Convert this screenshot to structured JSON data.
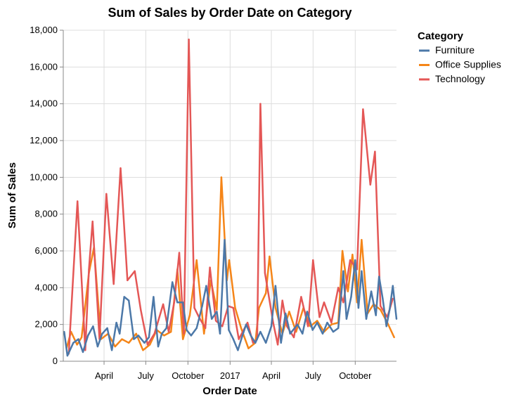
{
  "chart_data": {
    "type": "line",
    "title": "Sum of Sales by Order Date on Category",
    "xlabel": "Order Date",
    "ylabel": "Sum of Sales",
    "ylim": [
      0,
      18000
    ],
    "xlim": [
      "2016-01-03",
      "2017-12-30"
    ],
    "grid": true,
    "legend": {
      "title": "Category",
      "position": "top-right"
    },
    "x_ticks": [
      {
        "date": "2016-04-01",
        "label": "April"
      },
      {
        "date": "2016-07-01",
        "label": "July"
      },
      {
        "date": "2016-10-01",
        "label": "October"
      },
      {
        "date": "2017-01-01",
        "label": "2017"
      },
      {
        "date": "2017-04-01",
        "label": "April"
      },
      {
        "date": "2017-07-01",
        "label": "July"
      },
      {
        "date": "2017-10-01",
        "label": "October"
      }
    ],
    "y_ticks": [
      0,
      2000,
      4000,
      6000,
      8000,
      10000,
      12000,
      14000,
      16000,
      18000
    ],
    "y_tick_labels": [
      "0",
      "2,000",
      "4,000",
      "6,000",
      "8,000",
      "10,000",
      "12,000",
      "14,000",
      "16,000",
      "18,000"
    ],
    "series": [
      {
        "name": "Office Supplies",
        "color": "#f58518",
        "points": [
          [
            "2016-01-10",
            700
          ],
          [
            "2016-01-20",
            1600
          ],
          [
            "2016-02-02",
            900
          ],
          [
            "2016-02-12",
            1300
          ],
          [
            "2016-02-28",
            4800
          ],
          [
            "2016-03-10",
            6200
          ],
          [
            "2016-03-25",
            1200
          ],
          [
            "2016-04-10",
            1500
          ],
          [
            "2016-04-25",
            800
          ],
          [
            "2016-05-10",
            1200
          ],
          [
            "2016-05-25",
            1000
          ],
          [
            "2016-06-10",
            1500
          ],
          [
            "2016-06-25",
            600
          ],
          [
            "2016-07-10",
            900
          ],
          [
            "2016-07-25",
            1700
          ],
          [
            "2016-08-10",
            1400
          ],
          [
            "2016-08-25",
            1600
          ],
          [
            "2016-09-08",
            5000
          ],
          [
            "2016-09-20",
            1200
          ],
          [
            "2016-10-05",
            2500
          ],
          [
            "2016-10-20",
            5500
          ],
          [
            "2016-11-05",
            1500
          ],
          [
            "2016-11-20",
            4400
          ],
          [
            "2016-12-03",
            2800
          ],
          [
            "2016-12-13",
            10000
          ],
          [
            "2016-12-25",
            4400
          ],
          [
            "2016-12-30",
            5500
          ],
          [
            "2017-01-12",
            2900
          ],
          [
            "2017-01-25",
            1800
          ],
          [
            "2017-02-10",
            700
          ],
          [
            "2017-02-25",
            1000
          ],
          [
            "2017-03-05",
            2900
          ],
          [
            "2017-03-20",
            3700
          ],
          [
            "2017-03-28",
            5700
          ],
          [
            "2017-04-10",
            2900
          ],
          [
            "2017-04-25",
            1500
          ],
          [
            "2017-05-10",
            2700
          ],
          [
            "2017-05-25",
            1600
          ],
          [
            "2017-06-10",
            2900
          ],
          [
            "2017-06-25",
            1900
          ],
          [
            "2017-07-10",
            2200
          ],
          [
            "2017-07-25",
            1600
          ],
          [
            "2017-08-10",
            2000
          ],
          [
            "2017-08-25",
            2100
          ],
          [
            "2017-09-03",
            6000
          ],
          [
            "2017-09-15",
            3800
          ],
          [
            "2017-09-25",
            5800
          ],
          [
            "2017-10-05",
            3200
          ],
          [
            "2017-10-15",
            6600
          ],
          [
            "2017-10-28",
            2600
          ],
          [
            "2017-11-10",
            3100
          ],
          [
            "2017-11-25",
            2800
          ],
          [
            "2017-12-10",
            2100
          ],
          [
            "2017-12-25",
            1300
          ]
        ]
      },
      {
        "name": "Technology",
        "color": "#e45756",
        "points": [
          [
            "2016-01-15",
            400
          ],
          [
            "2016-02-03",
            8700
          ],
          [
            "2016-02-20",
            600
          ],
          [
            "2016-02-28",
            5000
          ],
          [
            "2016-03-07",
            7600
          ],
          [
            "2016-03-22",
            1200
          ],
          [
            "2016-04-06",
            9100
          ],
          [
            "2016-04-22",
            4200
          ],
          [
            "2016-05-07",
            10500
          ],
          [
            "2016-05-22",
            4400
          ],
          [
            "2016-06-07",
            4900
          ],
          [
            "2016-06-20",
            2800
          ],
          [
            "2016-07-05",
            900
          ],
          [
            "2016-07-20",
            1500
          ],
          [
            "2016-08-08",
            3100
          ],
          [
            "2016-08-20",
            1600
          ],
          [
            "2016-09-01",
            3200
          ],
          [
            "2016-09-12",
            5900
          ],
          [
            "2016-09-22",
            1500
          ],
          [
            "2016-10-03",
            17500
          ],
          [
            "2016-10-15",
            2900
          ],
          [
            "2016-10-25",
            2400
          ],
          [
            "2016-11-08",
            1800
          ],
          [
            "2016-11-18",
            5100
          ],
          [
            "2016-12-01",
            2200
          ],
          [
            "2016-12-15",
            1900
          ],
          [
            "2016-12-28",
            3000
          ],
          [
            "2017-01-08",
            2900
          ],
          [
            "2017-01-20",
            1200
          ],
          [
            "2017-02-08",
            2100
          ],
          [
            "2017-02-20",
            1000
          ],
          [
            "2017-03-01",
            1200
          ],
          [
            "2017-03-08",
            14000
          ],
          [
            "2017-03-18",
            4800
          ],
          [
            "2017-04-05",
            2100
          ],
          [
            "2017-04-15",
            900
          ],
          [
            "2017-04-25",
            3300
          ],
          [
            "2017-05-05",
            1900
          ],
          [
            "2017-05-20",
            1300
          ],
          [
            "2017-06-05",
            3500
          ],
          [
            "2017-06-20",
            1900
          ],
          [
            "2017-07-01",
            5500
          ],
          [
            "2017-07-15",
            2400
          ],
          [
            "2017-07-25",
            3200
          ],
          [
            "2017-08-10",
            2100
          ],
          [
            "2017-08-25",
            4000
          ],
          [
            "2017-09-05",
            3200
          ],
          [
            "2017-09-20",
            5500
          ],
          [
            "2017-10-05",
            5000
          ],
          [
            "2017-10-18",
            13700
          ],
          [
            "2017-11-03",
            9600
          ],
          [
            "2017-11-13",
            11400
          ],
          [
            "2017-11-25",
            3000
          ],
          [
            "2017-12-10",
            2400
          ],
          [
            "2017-12-22",
            3400
          ]
        ]
      },
      {
        "name": "Furniture",
        "color": "#4c78a8",
        "points": [
          [
            "2016-01-05",
            1600
          ],
          [
            "2016-01-12",
            300
          ],
          [
            "2016-01-25",
            1000
          ],
          [
            "2016-02-05",
            1200
          ],
          [
            "2016-02-15",
            500
          ],
          [
            "2016-02-26",
            1400
          ],
          [
            "2016-03-08",
            1900
          ],
          [
            "2016-03-18",
            800
          ],
          [
            "2016-03-28",
            1500
          ],
          [
            "2016-04-08",
            1800
          ],
          [
            "2016-04-18",
            600
          ],
          [
            "2016-04-28",
            2100
          ],
          [
            "2016-05-05",
            1500
          ],
          [
            "2016-05-15",
            3500
          ],
          [
            "2016-05-25",
            3300
          ],
          [
            "2016-06-05",
            1200
          ],
          [
            "2016-06-15",
            1400
          ],
          [
            "2016-06-28",
            1000
          ],
          [
            "2016-07-08",
            1300
          ],
          [
            "2016-07-18",
            3500
          ],
          [
            "2016-07-28",
            800
          ],
          [
            "2016-08-05",
            1500
          ],
          [
            "2016-08-15",
            1800
          ],
          [
            "2016-08-28",
            4300
          ],
          [
            "2016-09-08",
            3200
          ],
          [
            "2016-09-20",
            3200
          ],
          [
            "2016-09-28",
            1700
          ],
          [
            "2016-10-08",
            1400
          ],
          [
            "2016-10-20",
            1800
          ],
          [
            "2016-11-01",
            3000
          ],
          [
            "2016-11-10",
            4100
          ],
          [
            "2016-11-22",
            2300
          ],
          [
            "2016-12-03",
            2700
          ],
          [
            "2016-12-10",
            1500
          ],
          [
            "2016-12-20",
            6600
          ],
          [
            "2016-12-29",
            1700
          ],
          [
            "2017-01-08",
            1200
          ],
          [
            "2017-01-18",
            600
          ],
          [
            "2017-01-28",
            1400
          ],
          [
            "2017-02-05",
            2000
          ],
          [
            "2017-02-15",
            1400
          ],
          [
            "2017-02-25",
            1000
          ],
          [
            "2017-03-08",
            1600
          ],
          [
            "2017-03-20",
            1000
          ],
          [
            "2017-04-01",
            1900
          ],
          [
            "2017-04-10",
            4100
          ],
          [
            "2017-04-22",
            1000
          ],
          [
            "2017-05-02",
            2600
          ],
          [
            "2017-05-12",
            1500
          ],
          [
            "2017-05-28",
            2000
          ],
          [
            "2017-06-08",
            1500
          ],
          [
            "2017-06-18",
            2700
          ],
          [
            "2017-06-30",
            1700
          ],
          [
            "2017-07-10",
            2100
          ],
          [
            "2017-07-22",
            1500
          ],
          [
            "2017-08-01",
            2100
          ],
          [
            "2017-08-14",
            1600
          ],
          [
            "2017-08-25",
            1800
          ],
          [
            "2017-09-05",
            4900
          ],
          [
            "2017-09-12",
            2300
          ],
          [
            "2017-09-22",
            3500
          ],
          [
            "2017-10-01",
            5500
          ],
          [
            "2017-10-08",
            2900
          ],
          [
            "2017-10-15",
            4900
          ],
          [
            "2017-10-25",
            2300
          ],
          [
            "2017-11-05",
            3800
          ],
          [
            "2017-11-15",
            2500
          ],
          [
            "2017-11-22",
            4600
          ],
          [
            "2017-11-30",
            3400
          ],
          [
            "2017-12-08",
            1900
          ],
          [
            "2017-12-15",
            2800
          ],
          [
            "2017-12-22",
            4100
          ],
          [
            "2017-12-30",
            2300
          ]
        ]
      }
    ]
  }
}
